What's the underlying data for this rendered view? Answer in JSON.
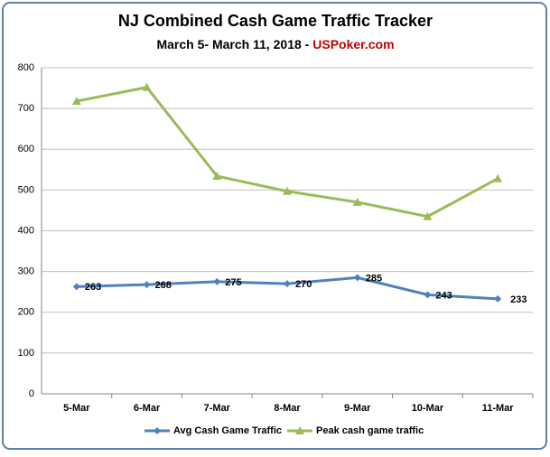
{
  "chart_data": {
    "type": "line",
    "title": "NJ Combined Cash Game Traffic Tracker",
    "subtitle": [
      "March 5- March 11, 2018 - ",
      "USPoker.com"
    ],
    "categories": [
      "5-Mar",
      "6-Mar",
      "7-Mar",
      "8-Mar",
      "9-Mar",
      "10-Mar",
      "11-Mar"
    ],
    "series": [
      {
        "name": "Avg Cash Game Traffic",
        "color": "#4f81bd",
        "marker": "diamond",
        "data_labels": true,
        "values": [
          263,
          268,
          275,
          270,
          285,
          243,
          233
        ]
      },
      {
        "name": "Peak cash game traffic",
        "color": "#9bbb59",
        "marker": "triangle",
        "data_labels": false,
        "values": [
          718,
          752,
          534,
          497,
          470,
          435,
          528
        ]
      }
    ],
    "ylim": [
      0,
      800
    ],
    "yticks": [
      0,
      100,
      200,
      300,
      400,
      500,
      600,
      700,
      800
    ],
    "grid": true,
    "legend": "bottom"
  }
}
